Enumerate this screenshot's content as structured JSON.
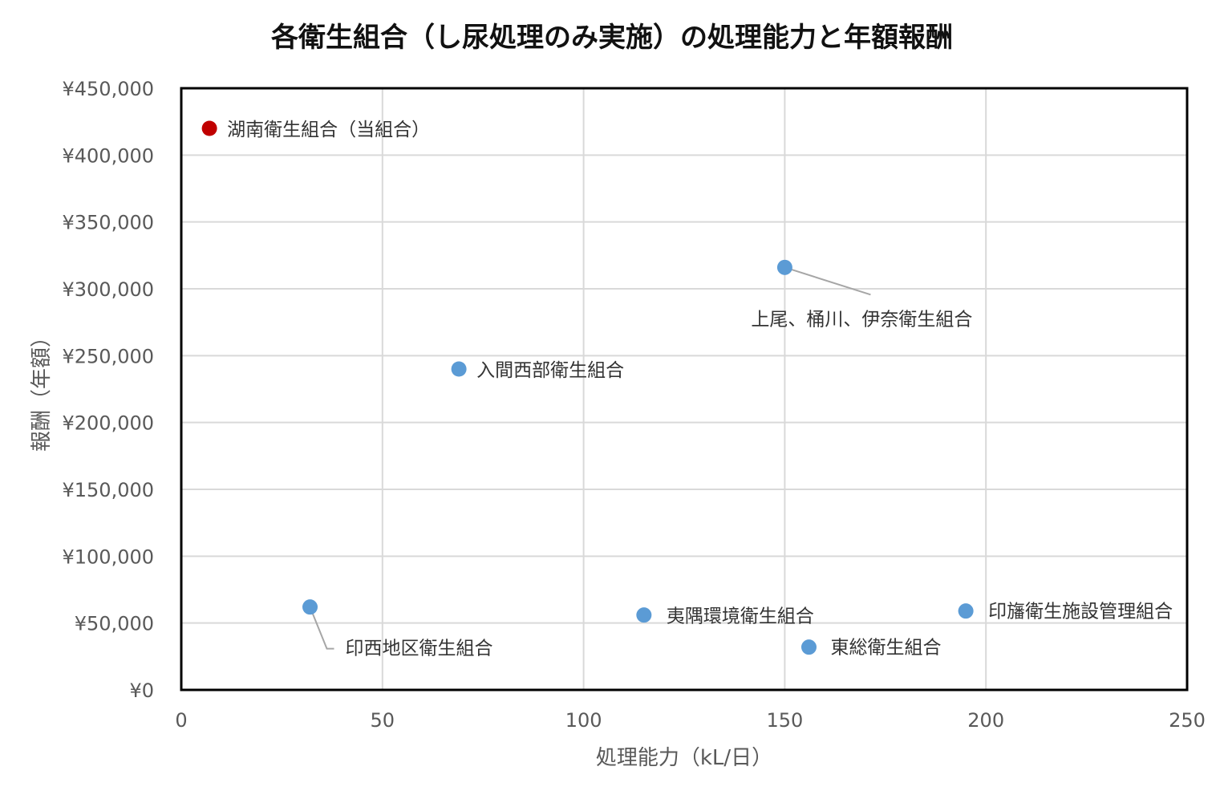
{
  "chart_data": {
    "type": "scatter",
    "title": "各衛生組合（し尿処理のみ実施）の処理能力と年額報酬",
    "xlabel": "処理能力（kL/日）",
    "ylabel": "報酬（年額）",
    "xlim": [
      0,
      250
    ],
    "ylim": [
      0,
      450000
    ],
    "x_ticks": [
      0,
      50,
      100,
      150,
      200,
      250
    ],
    "x_tick_labels": [
      "0",
      "50",
      "100",
      "150",
      "200",
      "250"
    ],
    "y_ticks": [
      0,
      50000,
      100000,
      150000,
      200000,
      250000,
      300000,
      350000,
      400000,
      450000
    ],
    "y_tick_labels": [
      "¥0",
      "¥50,000",
      "¥100,000",
      "¥150,000",
      "¥200,000",
      "¥250,000",
      "¥300,000",
      "¥350,000",
      "¥400,000",
      "¥450,000"
    ],
    "grid": true,
    "legend": "none",
    "colors": {
      "highlight": "#C00000",
      "default": "#5B9BD5"
    },
    "points": [
      {
        "label": "湖南衛生組合（当組合）",
        "x": 7,
        "y": 420000,
        "highlight": true
      },
      {
        "label": "上尾、桶川、伊奈衛生組合",
        "x": 150,
        "y": 316000,
        "highlight": false
      },
      {
        "label": "入間西部衛生組合",
        "x": 69,
        "y": 240000,
        "highlight": false
      },
      {
        "label": "印西地区衛生組合",
        "x": 32,
        "y": 62000,
        "highlight": false
      },
      {
        "label": "夷隅環境衛生組合",
        "x": 115,
        "y": 56000,
        "highlight": false
      },
      {
        "label": "東総衛生組合",
        "x": 156,
        "y": 32000,
        "highlight": false
      },
      {
        "label": "印旛衛生施設管理組合",
        "x": 195,
        "y": 59000,
        "highlight": false
      }
    ]
  }
}
